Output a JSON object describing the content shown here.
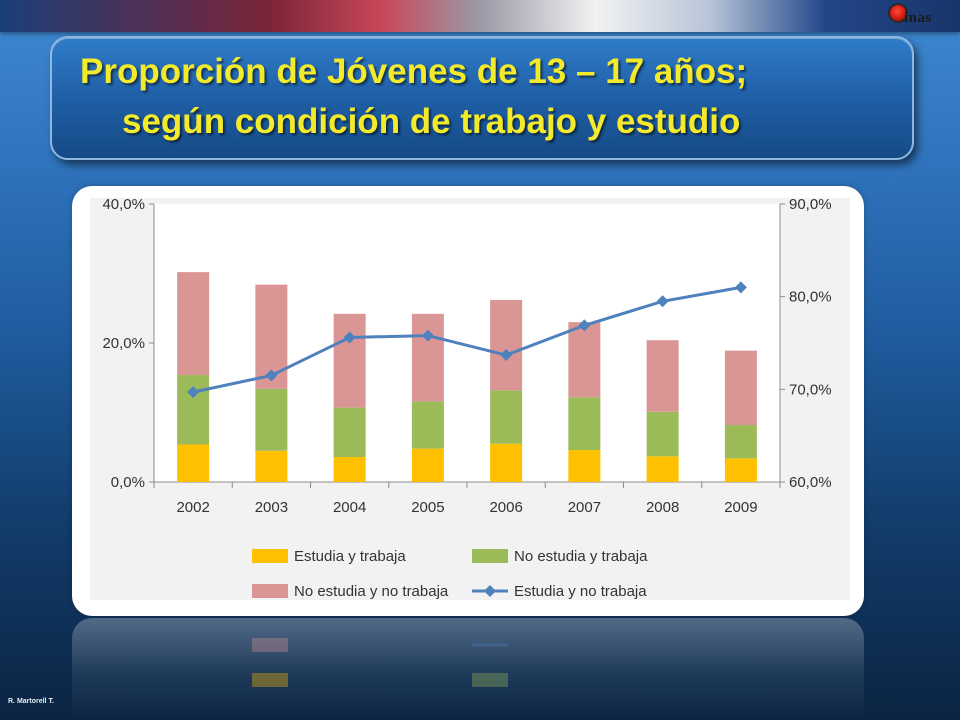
{
  "title_line1": "Proporción de Jóvenes de 13 – 17 años;",
  "title_line2": "según condición de trabajo y estudio",
  "logo_text": "inas",
  "credit": "R. Martorell T.",
  "colors": {
    "estudia_trabaja": "#ffc000",
    "no_estudia_trabaja": "#9bbb59",
    "no_estudia_no_trabaja": "#d99694",
    "estudia_no_trabaja": "#4f81bd",
    "title": "#f3ea2c"
  },
  "chart_data": {
    "type": "bar",
    "stacked": true,
    "categories": [
      "2002",
      "2003",
      "2004",
      "2005",
      "2006",
      "2007",
      "2008",
      "2009"
    ],
    "y_left": {
      "min": 0,
      "max": 40,
      "ticks": [
        "0,0%",
        "20,0%",
        "40,0%"
      ]
    },
    "y_right": {
      "min": 60,
      "max": 90,
      "ticks": [
        "60,0%",
        "70,0%",
        "80,0%",
        "90,0%"
      ]
    },
    "series": [
      {
        "name": "Estudia y trabaja",
        "type": "bar",
        "axis": "left",
        "values": [
          5.4,
          4.5,
          3.6,
          4.8,
          5.5,
          4.6,
          3.7,
          3.4
        ]
      },
      {
        "name": "No estudia y trabaja",
        "type": "bar",
        "axis": "left",
        "values": [
          10.0,
          8.9,
          7.1,
          6.8,
          7.7,
          7.6,
          6.4,
          4.8
        ]
      },
      {
        "name": "No estudia y no trabaja",
        "type": "bar",
        "axis": "left",
        "values": [
          14.8,
          15.0,
          13.5,
          12.6,
          13.0,
          10.8,
          10.3,
          10.7
        ]
      },
      {
        "name": "Estudia y no trabaja",
        "type": "line",
        "axis": "right",
        "values": [
          69.7,
          71.5,
          75.6,
          75.8,
          73.7,
          76.9,
          79.5,
          81.0
        ]
      }
    ],
    "legend_position": "bottom",
    "grid": false
  }
}
